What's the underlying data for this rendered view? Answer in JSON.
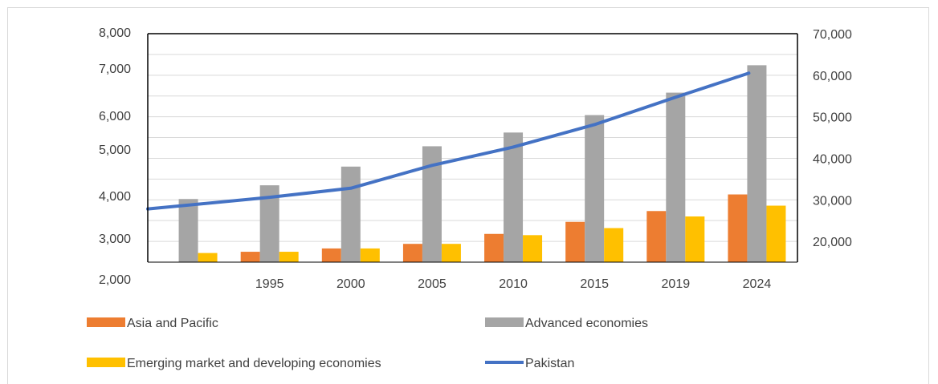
{
  "chart_data": {
    "type": "bar+line",
    "title": "",
    "categories": [
      "",
      "1995",
      "2000",
      "2005",
      "2010",
      "2015",
      "2019",
      "2024"
    ],
    "primary_axis": {
      "side": "left",
      "ticks": [
        "8,000",
        "7,000",
        "6,000",
        "5,000",
        "4,000",
        "3,000",
        "2,000"
      ]
    },
    "secondary_axis": {
      "side": "right",
      "ticks": [
        "70,000",
        "60,000",
        "50,000",
        "40,000",
        "30,000",
        "20,000"
      ],
      "range": [
        15000,
        70000
      ]
    },
    "series": [
      {
        "name": "Asia and Pacific",
        "type": "bar",
        "axis": "secondary",
        "values": [
          null,
          17500,
          18300,
          19400,
          21800,
          24700,
          27300,
          31300
        ]
      },
      {
        "name": "Advanced economies",
        "type": "bar",
        "axis": "secondary",
        "values": [
          30200,
          33500,
          38000,
          42900,
          46200,
          50400,
          55800,
          62400
        ]
      },
      {
        "name": "Emerging market and developing economies",
        "type": "bar",
        "axis": "secondary",
        "values": [
          17200,
          17500,
          18300,
          19400,
          21500,
          23200,
          26000,
          28600
        ]
      },
      {
        "name": "Pakistan",
        "type": "line",
        "axis": "secondary",
        "values": [
          27800,
          30600,
          32800,
          38300,
          42700,
          48100,
          54700,
          60500
        ]
      }
    ],
    "colors": {
      "Asia and Pacific": "#ED7D31",
      "Advanced economies": "#A5A5A5",
      "Emerging market and developing economies": "#FFC000",
      "Pakistan": "#4472C4"
    },
    "legend_position": "bottom"
  }
}
